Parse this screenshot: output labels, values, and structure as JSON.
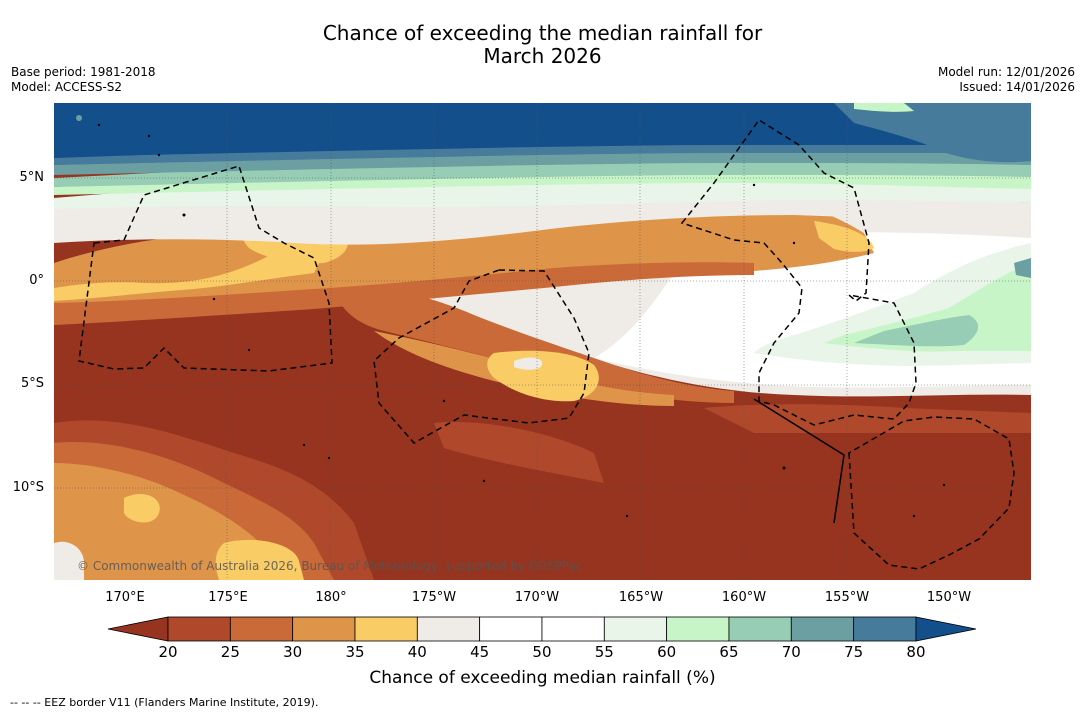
{
  "title": {
    "line1": "Chance of exceeding the median rainfall for",
    "line2": "March 2026"
  },
  "meta": {
    "base_period": "Base period: 1981-2018",
    "model": "Model: ACCESS-S2",
    "model_run": "Model run: 12/01/2026",
    "issued": "Issued: 14/01/2026"
  },
  "map": {
    "lat_labels": [
      "5°N",
      "0°",
      "5°S",
      "10°S"
    ],
    "lon_labels": [
      "170°E",
      "175°E",
      "180°",
      "175°W",
      "170°W",
      "165°W",
      "160°W",
      "155°W",
      "150°W"
    ],
    "copyright": "© Commonwealth of Australia 2026, Bureau of Meteorology, supported by COSPPac"
  },
  "colorbar": {
    "ticks": [
      "20",
      "25",
      "30",
      "35",
      "40",
      "45",
      "50",
      "55",
      "60",
      "65",
      "70",
      "75",
      "80"
    ],
    "colors": [
      "#96341f",
      "#b0492c",
      "#c96a38",
      "#de9449",
      "#f9cc66",
      "#efebe6",
      "#ffffff",
      "#ffffff",
      "#e8f5e8",
      "#c8f5c8",
      "#97ccb5",
      "#6b9fa2",
      "#467b9b",
      "#134f8a"
    ],
    "label": "Chance of exceeding median rainfall (%)"
  },
  "footer": {
    "eez_note": "--  --  -- EEZ border V11 (Flanders Marine Institute, 2019)."
  }
}
